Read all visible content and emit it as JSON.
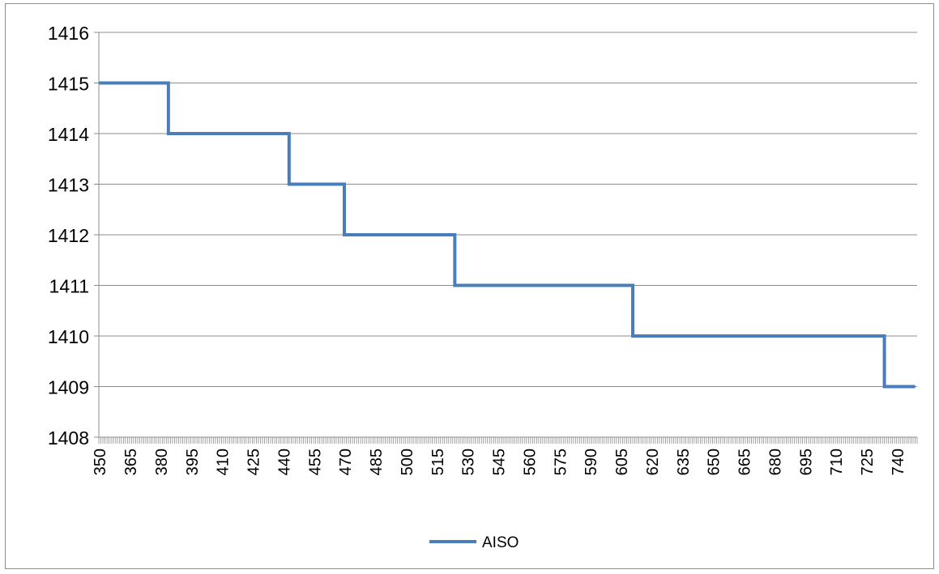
{
  "chart_data": {
    "type": "line",
    "title": "",
    "xlabel": "",
    "ylabel": "",
    "ylim": [
      1408,
      1416
    ],
    "yticks": [
      1408,
      1409,
      1410,
      1411,
      1412,
      1413,
      1414,
      1415,
      1416
    ],
    "xlim": [
      350,
      749
    ],
    "xtick_labels": [
      "350",
      "365",
      "380",
      "395",
      "410",
      "425",
      "440",
      "455",
      "470",
      "485",
      "500",
      "515",
      "530",
      "545",
      "560",
      "575",
      "590",
      "605",
      "620",
      "635",
      "650",
      "665",
      "680",
      "695",
      "710",
      "725",
      "740"
    ],
    "grid": true,
    "legend_position": "bottom",
    "series": [
      {
        "name": "AISO",
        "color": "#4a7ebb",
        "step_points": [
          [
            350,
            1415
          ],
          [
            384,
            1415
          ],
          [
            384,
            1414
          ],
          [
            443,
            1414
          ],
          [
            443,
            1413
          ],
          [
            470,
            1413
          ],
          [
            470,
            1412
          ],
          [
            524,
            1412
          ],
          [
            524,
            1411
          ],
          [
            611,
            1411
          ],
          [
            611,
            1410
          ],
          [
            734,
            1410
          ],
          [
            734,
            1409
          ],
          [
            749,
            1409
          ]
        ]
      }
    ]
  }
}
